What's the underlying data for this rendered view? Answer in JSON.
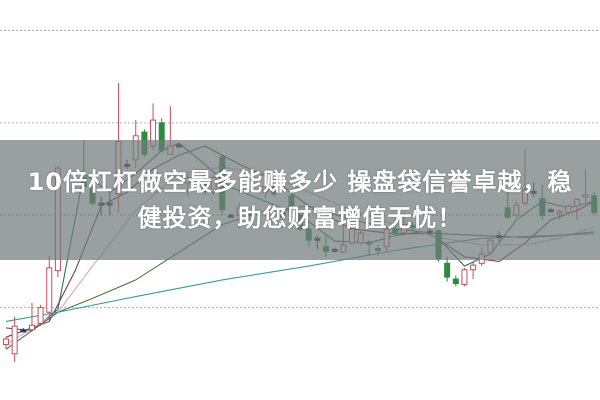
{
  "headline": {
    "line1": "10倍杠杠做空最多能赚多少 操盘袋信誉卓越，稳",
    "line2": "健投资，助您财富增值无忧！"
  },
  "chart_data": {
    "type": "candlestick",
    "title": "",
    "xlabel": "",
    "ylabel": "",
    "ylim": [
      0.0,
      4.33
    ],
    "xlim": [
      0,
      68
    ],
    "grid": {
      "horizontal": true,
      "style": "dotted",
      "levels": [
        1,
        2,
        3,
        4
      ]
    },
    "legend": "none",
    "colors": {
      "up": "#c0505a",
      "down": "#2e8b3e",
      "doji": "#3a3050",
      "grid": "#b0b0b0"
    },
    "candles_fields": [
      "slot",
      "open",
      "high",
      "low",
      "close"
    ],
    "candles": [
      [
        0,
        0.6,
        0.68,
        0.55,
        0.66
      ],
      [
        1,
        0.5,
        0.9,
        0.41,
        0.8
      ],
      [
        2,
        0.76,
        0.78,
        0.74,
        0.76
      ],
      [
        3,
        0.76,
        1.05,
        0.76,
        0.81
      ],
      [
        4,
        0.83,
        1.03,
        0.8,
        1.0
      ],
      [
        5,
        0.95,
        1.56,
        0.86,
        1.43
      ],
      [
        6,
        1.4,
        2.53,
        1.33,
        2.51
      ],
      [
        9,
        2.41,
        2.81,
        2.3,
        2.31
      ],
      [
        10,
        2.31,
        2.36,
        2.11,
        2.13
      ],
      [
        11,
        2.13,
        2.2,
        2.0,
        2.13
      ],
      [
        12,
        2.13,
        2.26,
        2.0,
        2.13
      ],
      [
        13,
        2.23,
        3.43,
        2.03,
        2.8
      ],
      [
        14,
        2.55,
        2.6,
        2.5,
        2.55
      ],
      [
        15,
        2.6,
        3.03,
        2.51,
        2.86
      ],
      [
        16,
        2.9,
        2.93,
        2.63,
        2.66
      ],
      [
        17,
        2.75,
        3.21,
        2.7,
        3.03
      ],
      [
        18,
        3.0,
        3.05,
        2.68,
        2.7
      ],
      [
        19,
        2.66,
        3.18,
        2.66,
        2.75
      ],
      [
        20,
        2.76,
        2.78,
        2.74,
        2.76
      ],
      [
        21,
        2.35,
        2.45,
        2.2,
        2.41
      ],
      [
        23,
        2.43,
        2.45,
        2.22,
        2.26
      ],
      [
        24,
        2.25,
        2.43,
        2.22,
        2.41
      ],
      [
        25,
        2.63,
        2.66,
        2.0,
        2.06
      ],
      [
        26,
        2.0,
        2.02,
        1.98,
        2.0
      ],
      [
        27,
        2.0,
        2.13,
        1.86,
        2.08
      ],
      [
        28,
        2.03,
        2.08,
        1.98,
        2.03
      ],
      [
        30,
        2.25,
        2.35,
        2.18,
        2.31
      ],
      [
        31,
        2.31,
        2.35,
        2.2,
        2.23
      ],
      [
        32,
        2.03,
        2.08,
        1.86,
        1.98
      ],
      [
        33,
        2.21,
        2.25,
        1.86,
        2.03
      ],
      [
        34,
        2.0,
        2.03,
        1.83,
        1.85
      ],
      [
        35,
        1.85,
        1.88,
        1.66,
        1.73
      ],
      [
        36,
        1.74,
        1.78,
        1.63,
        1.75
      ],
      [
        37,
        1.66,
        1.8,
        1.55,
        1.61
      ],
      [
        38,
        1.63,
        1.65,
        1.6,
        1.63
      ],
      [
        39,
        1.6,
        1.96,
        1.6,
        1.68
      ],
      [
        40,
        1.7,
        1.87,
        1.68,
        1.85
      ],
      [
        41,
        1.7,
        1.83,
        1.68,
        1.81
      ],
      [
        42,
        1.71,
        1.73,
        1.56,
        1.69
      ],
      [
        43,
        1.64,
        1.68,
        1.56,
        1.62
      ],
      [
        44,
        1.66,
        1.88,
        1.61,
        1.85
      ],
      [
        45,
        1.85,
        1.96,
        1.78,
        1.8
      ],
      [
        46,
        1.81,
        2.03,
        1.8,
        1.9
      ],
      [
        47,
        1.89,
        1.93,
        1.83,
        1.87
      ],
      [
        49,
        1.83,
        1.86,
        1.8,
        1.83
      ],
      [
        50,
        1.83,
        1.85,
        1.5,
        1.53
      ],
      [
        51,
        1.48,
        1.55,
        1.28,
        1.33
      ],
      [
        52,
        1.31,
        1.35,
        1.23,
        1.26
      ],
      [
        53,
        1.25,
        1.43,
        1.23,
        1.41
      ],
      [
        54,
        1.41,
        1.5,
        1.31,
        1.46
      ],
      [
        55,
        1.48,
        1.65,
        1.45,
        1.58
      ],
      [
        56,
        1.6,
        1.75,
        1.58,
        1.73
      ],
      [
        57,
        1.78,
        1.83,
        1.72,
        1.78
      ],
      [
        58,
        2.08,
        2.28,
        1.96,
        1.98
      ],
      [
        59,
        2.0,
        2.15,
        1.98,
        2.11
      ],
      [
        60,
        2.13,
        2.71,
        2.11,
        2.28
      ],
      [
        61,
        2.25,
        2.35,
        2.2,
        2.26
      ],
      [
        62,
        2.18,
        2.33,
        1.95,
        2.0
      ],
      [
        63,
        2.06,
        2.08,
        2.03,
        2.06
      ],
      [
        64,
        2.02,
        2.06,
        1.95,
        2.04
      ],
      [
        65,
        2.03,
        2.12,
        2.01,
        2.1
      ],
      [
        66,
        2.1,
        2.18,
        1.95,
        2.17
      ],
      [
        67,
        2.2,
        2.5,
        2.13,
        2.22
      ],
      [
        68,
        2.21,
        2.25,
        2.0,
        2.03
      ]
    ],
    "moving_averages": [
      {
        "color": "#2f6b78",
        "points": [
          [
            0,
            0.78
          ],
          [
            3,
            0.75
          ],
          [
            6,
            0.98
          ],
          [
            9,
            2.45
          ],
          [
            12,
            2.25
          ],
          [
            15,
            2.45
          ],
          [
            18,
            2.7
          ],
          [
            20,
            2.78
          ],
          [
            23,
            2.55
          ],
          [
            26,
            2.3
          ],
          [
            30,
            2.15
          ],
          [
            34,
            2.0
          ],
          [
            38,
            1.72
          ],
          [
            42,
            1.7
          ],
          [
            45,
            1.78
          ],
          [
            48,
            1.82
          ],
          [
            50,
            1.75
          ],
          [
            53,
            1.45
          ],
          [
            56,
            1.58
          ],
          [
            59,
            1.95
          ],
          [
            62,
            2.15
          ],
          [
            65,
            2.08
          ],
          [
            68,
            2.15
          ]
        ]
      },
      {
        "color": "#7a3a4a",
        "points": [
          [
            0,
            0.68
          ],
          [
            5,
            0.85
          ],
          [
            8,
            1.4
          ],
          [
            11,
            2.1
          ],
          [
            14,
            2.25
          ],
          [
            17,
            2.5
          ],
          [
            20,
            2.65
          ],
          [
            23,
            2.75
          ],
          [
            27,
            2.55
          ],
          [
            31,
            2.38
          ],
          [
            35,
            2.1
          ],
          [
            40,
            1.85
          ],
          [
            45,
            1.8
          ],
          [
            49,
            1.8
          ],
          [
            53,
            1.55
          ],
          [
            57,
            1.5
          ],
          [
            60,
            1.7
          ],
          [
            63,
            1.95
          ],
          [
            66,
            2.05
          ],
          [
            68,
            2.15
          ]
        ]
      },
      {
        "color": "#d9a0d8",
        "points": [
          [
            0,
            0.6
          ],
          [
            6,
            0.95
          ],
          [
            10,
            1.45
          ],
          [
            15,
            2.05
          ],
          [
            20,
            2.45
          ],
          [
            25,
            2.52
          ],
          [
            30,
            2.45
          ],
          [
            35,
            2.25
          ],
          [
            40,
            2.05
          ],
          [
            45,
            1.9
          ],
          [
            50,
            1.76
          ],
          [
            55,
            1.68
          ],
          [
            60,
            1.68
          ],
          [
            64,
            1.75
          ],
          [
            68,
            1.87
          ]
        ]
      },
      {
        "color": "#4d7a3a",
        "points": [
          [
            0,
            0.55
          ],
          [
            6,
            0.95
          ],
          [
            10,
            1.1
          ],
          [
            15,
            1.3
          ],
          [
            20,
            1.6
          ],
          [
            25,
            1.9
          ],
          [
            30,
            2.05
          ],
          [
            35,
            2.1
          ],
          [
            40,
            1.95
          ],
          [
            45,
            1.85
          ],
          [
            50,
            1.8
          ],
          [
            55,
            1.78
          ],
          [
            60,
            1.76
          ],
          [
            64,
            1.78
          ],
          [
            68,
            1.82
          ]
        ]
      },
      {
        "color": "#3a9aa0",
        "points": [
          [
            0,
            0.85
          ],
          [
            6,
            0.95
          ],
          [
            15,
            1.12
          ],
          [
            25,
            1.3
          ],
          [
            35,
            1.45
          ],
          [
            45,
            1.62
          ],
          [
            55,
            1.75
          ],
          [
            60,
            1.77
          ],
          [
            68,
            1.8
          ]
        ]
      }
    ]
  }
}
